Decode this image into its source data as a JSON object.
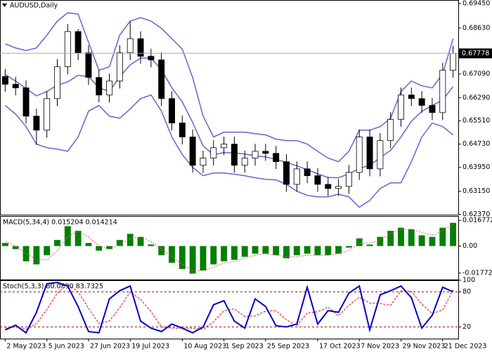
{
  "chart_data": [
    {
      "type": "candlestick",
      "title": "AUDUSD,Daily",
      "open": [
        0.67,
        0.6674,
        0.6662,
        0.6567,
        0.652,
        0.6626,
        0.6733,
        0.6851,
        0.678,
        0.6697,
        0.6638,
        0.6685,
        0.678,
        0.6827,
        0.6768,
        0.6756,
        0.6626,
        0.6544,
        0.6497,
        0.6402,
        0.6426,
        0.6461,
        0.6473,
        0.6402,
        0.6426,
        0.6449,
        0.6442,
        0.6414,
        0.6338,
        0.639,
        0.6367,
        0.6338,
        0.6324,
        0.6331,
        0.6378,
        0.6497,
        0.639,
        0.6485,
        0.6556,
        0.6638,
        0.6626,
        0.6603,
        0.6579,
        0.6721
      ],
      "high": [
        0.6725,
        0.6699,
        0.6687,
        0.6592,
        0.6651,
        0.6758,
        0.6876,
        0.686,
        0.6805,
        0.6722,
        0.671,
        0.6805,
        0.6886,
        0.6852,
        0.6793,
        0.6781,
        0.6651,
        0.6569,
        0.6522,
        0.6451,
        0.6486,
        0.6498,
        0.6498,
        0.6451,
        0.6474,
        0.6474,
        0.6467,
        0.6439,
        0.6415,
        0.6415,
        0.6392,
        0.6363,
        0.6356,
        0.6403,
        0.6522,
        0.6522,
        0.651,
        0.6581,
        0.6663,
        0.6663,
        0.6651,
        0.6628,
        0.6746,
        0.6803
      ],
      "low": [
        0.6649,
        0.6637,
        0.6542,
        0.647,
        0.6495,
        0.6601,
        0.6708,
        0.6755,
        0.6672,
        0.6613,
        0.6613,
        0.666,
        0.6755,
        0.6743,
        0.6731,
        0.6601,
        0.6519,
        0.6472,
        0.6377,
        0.6377,
        0.6401,
        0.6436,
        0.6377,
        0.6377,
        0.6401,
        0.6417,
        0.6389,
        0.6313,
        0.6313,
        0.6342,
        0.6313,
        0.6299,
        0.6299,
        0.6306,
        0.6353,
        0.6365,
        0.6365,
        0.646,
        0.6531,
        0.6601,
        0.6578,
        0.6554,
        0.6554,
        0.6696
      ],
      "close": [
        0.6674,
        0.6662,
        0.6567,
        0.652,
        0.6626,
        0.6733,
        0.6851,
        0.678,
        0.6697,
        0.6638,
        0.6685,
        0.678,
        0.6827,
        0.6768,
        0.6756,
        0.6626,
        0.6544,
        0.6497,
        0.6402,
        0.6426,
        0.6461,
        0.6473,
        0.6402,
        0.6426,
        0.6449,
        0.6442,
        0.6414,
        0.6338,
        0.639,
        0.6367,
        0.6338,
        0.6324,
        0.6331,
        0.6378,
        0.6497,
        0.639,
        0.6485,
        0.6556,
        0.6638,
        0.6626,
        0.6603,
        0.6579,
        0.6721,
        0.6778
      ],
      "up_color": "#ffffff",
      "down_color": "#000000",
      "bands": {
        "color": "#6f5fd8",
        "upper": [
          0.681,
          0.6796,
          0.6787,
          0.6796,
          0.6839,
          0.6886,
          0.6914,
          0.691,
          0.6815,
          0.6721,
          0.6733,
          0.6839,
          0.6886,
          0.6898,
          0.6886,
          0.6862,
          0.6827,
          0.6792,
          0.6697,
          0.6567,
          0.6497,
          0.6513,
          0.6513,
          0.6513,
          0.6508,
          0.6504,
          0.649,
          0.6485,
          0.6485,
          0.6473,
          0.6449,
          0.6426,
          0.6414,
          0.6449,
          0.652,
          0.652,
          0.6532,
          0.656,
          0.665,
          0.6685,
          0.6669,
          0.6662,
          0.6709,
          0.6827
        ],
        "middle": [
          0.6707,
          0.6685,
          0.666,
          0.6635,
          0.665,
          0.6671,
          0.6682,
          0.6704,
          0.67,
          0.6662,
          0.665,
          0.67,
          0.6739,
          0.6762,
          0.6762,
          0.6723,
          0.6662,
          0.6615,
          0.6546,
          0.6467,
          0.6437,
          0.6445,
          0.6443,
          0.644,
          0.6434,
          0.643,
          0.6422,
          0.6412,
          0.64,
          0.6387,
          0.6373,
          0.6361,
          0.636,
          0.6373,
          0.6391,
          0.6402,
          0.6428,
          0.6452,
          0.6497,
          0.655,
          0.6583,
          0.6603,
          0.6621,
          0.6666
        ],
        "lower": [
          0.6603,
          0.6574,
          0.6532,
          0.6473,
          0.6461,
          0.6456,
          0.6449,
          0.6497,
          0.6584,
          0.6603,
          0.6567,
          0.656,
          0.6591,
          0.6626,
          0.6638,
          0.6584,
          0.6497,
          0.6438,
          0.6395,
          0.6367,
          0.6376,
          0.6376,
          0.6372,
          0.6367,
          0.636,
          0.6355,
          0.6353,
          0.6338,
          0.6315,
          0.6301,
          0.6296,
          0.6296,
          0.6305,
          0.6296,
          0.6261,
          0.6284,
          0.6324,
          0.6343,
          0.6343,
          0.6414,
          0.6497,
          0.6544,
          0.6532,
          0.6504
        ]
      },
      "last_price": {
        "value": 0.67778,
        "label": "0.67778"
      },
      "xlim": [
        -0.5,
        43.5
      ],
      "ylim": [
        0.6236,
        0.6957
      ],
      "yticks": [
        {
          "value": 0.6945,
          "label": "0.69450"
        },
        {
          "value": 0.6863,
          "label": "0.68630"
        },
        {
          "value": 0.6709,
          "label": "0.67090"
        },
        {
          "value": 0.6629,
          "label": "0.66290"
        },
        {
          "value": 0.6551,
          "label": "0.65510"
        },
        {
          "value": 0.6473,
          "label": "0.64730"
        },
        {
          "value": 0.6395,
          "label": "0.63950"
        },
        {
          "value": 0.6315,
          "label": "0.63150"
        },
        {
          "value": 0.6237,
          "label": "0.62370"
        }
      ]
    },
    {
      "type": "macd",
      "title": "MACD(5,34,4) 0.015204 0.014214",
      "histogram": {
        "color": "#008000",
        "values": [
          0.002,
          -0.002,
          -0.01,
          -0.012,
          -0.006,
          0.004,
          0.013,
          0.01,
          0.002,
          -0.003,
          -0.002,
          0.004,
          0.008,
          0.006,
          0.001,
          -0.006,
          -0.011,
          -0.015,
          -0.018,
          -0.016,
          -0.012,
          -0.01,
          -0.009,
          -0.007,
          -0.005,
          -0.005,
          -0.006,
          -0.008,
          -0.006,
          -0.005,
          -0.006,
          -0.006,
          -0.005,
          -0.001,
          0.005,
          0.001,
          0.006,
          0.01,
          0.012,
          0.011,
          0.007,
          0.006,
          0.012,
          0.015204
        ]
      },
      "signal": {
        "color": "#e75480",
        "values": [
          0.003,
          0.0,
          -0.005,
          -0.009,
          -0.009,
          -0.003,
          0.006,
          0.01,
          0.006,
          0.0,
          -0.002,
          0.001,
          0.005,
          0.006,
          0.003,
          -0.002,
          -0.007,
          -0.012,
          -0.016,
          -0.016,
          -0.014,
          -0.011,
          -0.01,
          -0.008,
          -0.006,
          -0.005,
          -0.006,
          -0.007,
          -0.007,
          -0.006,
          -0.006,
          -0.006,
          -0.005,
          -0.003,
          0.002,
          0.002,
          0.004,
          0.008,
          0.011,
          0.011,
          0.009,
          0.007,
          0.01,
          0.014214
        ]
      },
      "xlim": [
        -0.5,
        43.5
      ],
      "ylim": [
        -0.0219,
        0.0196
      ],
      "yticks": [
        0.016772,
        {
          "value": 0,
          "label": "0.00"
        },
        -0.01772
      ]
    },
    {
      "type": "stochastic",
      "title": "Stoch(5,3,3) 80.0890 83.7325",
      "main": {
        "color": "#0000cd",
        "values": [
          15,
          23,
          10,
          45,
          94,
          96,
          90,
          55,
          12,
          10,
          68,
          82,
          90,
          30,
          18,
          12,
          25,
          18,
          10,
          20,
          58,
          65,
          30,
          18,
          68,
          55,
          22,
          20,
          25,
          88,
          25,
          48,
          45,
          78,
          90,
          15,
          75,
          82,
          90,
          70,
          18,
          40,
          88,
          80.089
        ]
      },
      "signal": {
        "color": "#ff0000",
        "values": [
          18,
          20,
          16,
          26,
          50,
          78,
          93,
          80,
          52,
          26,
          30,
          53,
          80,
          67,
          46,
          20,
          18,
          18,
          18,
          16,
          29,
          48,
          51,
          38,
          39,
          47,
          48,
          32,
          22,
          44,
          46,
          54,
          39,
          57,
          71,
          61,
          60,
          57,
          82,
          81,
          59,
          43,
          49,
          83.7325
        ]
      },
      "levels": [
        80,
        20
      ],
      "level_color": "#c00000",
      "xlim": [
        -0.5,
        43.5
      ],
      "ylim": [
        0,
        100
      ],
      "yticks": [
        100,
        80,
        20
      ],
      "xticks": [
        {
          "value": 0,
          "label": "2 May 2023"
        },
        {
          "value": 4,
          "label": "5 Jun 2023"
        },
        {
          "value": 8,
          "label": "27 Jun 2023"
        },
        {
          "value": 12,
          "label": "19 Jul 2023"
        },
        {
          "value": 17,
          "label": "10 Aug 2023"
        },
        {
          "value": 21,
          "label": "1 Sep 2023"
        },
        {
          "value": 25,
          "label": "25 Sep 2023"
        },
        {
          "value": 30,
          "label": "17 Oct 2023"
        },
        {
          "value": 34,
          "label": "7 Nov 2023"
        },
        {
          "value": 38,
          "label": "29 Nov 2023"
        },
        {
          "value": 42,
          "label": "21 Dec 2023"
        }
      ]
    }
  ]
}
